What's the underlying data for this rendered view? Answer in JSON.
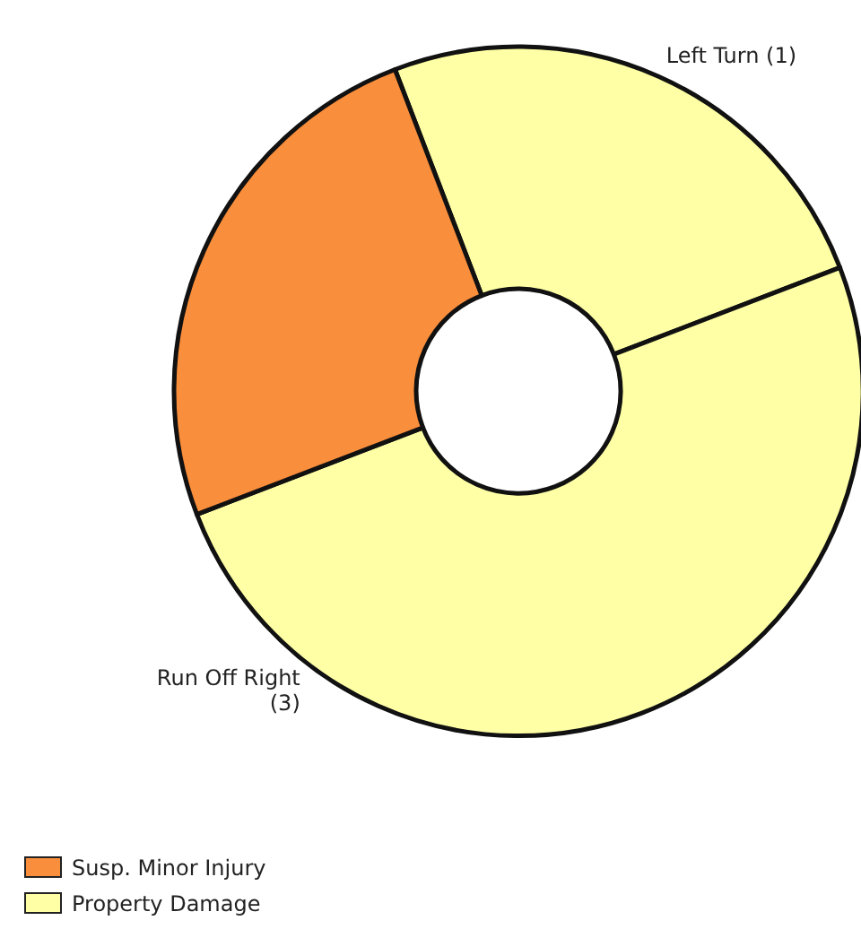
{
  "chart_data": {
    "type": "donut",
    "categories": [
      "Left Turn (1)",
      "Run Off Right (3)",
      null
    ],
    "values": [
      1,
      2,
      1
    ],
    "colors": [
      "#ffffa6",
      "#ffffa6",
      "#f98e3c"
    ],
    "annotations": [
      "Susp. Minor Injury",
      "Property Damage"
    ]
  }
}
